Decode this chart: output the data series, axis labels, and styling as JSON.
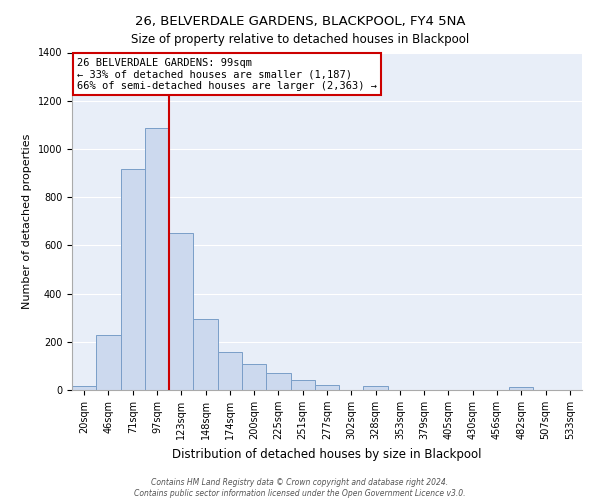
{
  "title": "26, BELVERDALE GARDENS, BLACKPOOL, FY4 5NA",
  "subtitle": "Size of property relative to detached houses in Blackpool",
  "xlabel": "Distribution of detached houses by size in Blackpool",
  "ylabel": "Number of detached properties",
  "bar_labels": [
    "20sqm",
    "46sqm",
    "71sqm",
    "97sqm",
    "123sqm",
    "148sqm",
    "174sqm",
    "200sqm",
    "225sqm",
    "251sqm",
    "277sqm",
    "302sqm",
    "328sqm",
    "353sqm",
    "379sqm",
    "405sqm",
    "430sqm",
    "456sqm",
    "482sqm",
    "507sqm",
    "533sqm"
  ],
  "bar_values": [
    15,
    228,
    918,
    1085,
    652,
    293,
    158,
    107,
    70,
    40,
    22,
    0,
    18,
    0,
    0,
    0,
    0,
    0,
    12,
    0,
    0
  ],
  "bar_color": "#ccd9ee",
  "bar_edge_color": "#7a9ec8",
  "vline_x_index": 3,
  "vline_color": "#cc0000",
  "annotation_title": "26 BELVERDALE GARDENS: 99sqm",
  "annotation_line1": "← 33% of detached houses are smaller (1,187)",
  "annotation_line2": "66% of semi-detached houses are larger (2,363) →",
  "box_edge_color": "#cc0000",
  "ylim": [
    0,
    1400
  ],
  "yticks": [
    0,
    200,
    400,
    600,
    800,
    1000,
    1200,
    1400
  ],
  "footer_line1": "Contains HM Land Registry data © Crown copyright and database right 2024.",
  "footer_line2": "Contains public sector information licensed under the Open Government Licence v3.0.",
  "background_color": "#ffffff",
  "plot_bg_color": "#e8eef8",
  "grid_color": "#ffffff",
  "title_fontsize": 9.5,
  "subtitle_fontsize": 8.5,
  "ylabel_fontsize": 8,
  "xlabel_fontsize": 8.5,
  "tick_fontsize": 7,
  "ann_fontsize": 7.5,
  "footer_fontsize": 5.5
}
